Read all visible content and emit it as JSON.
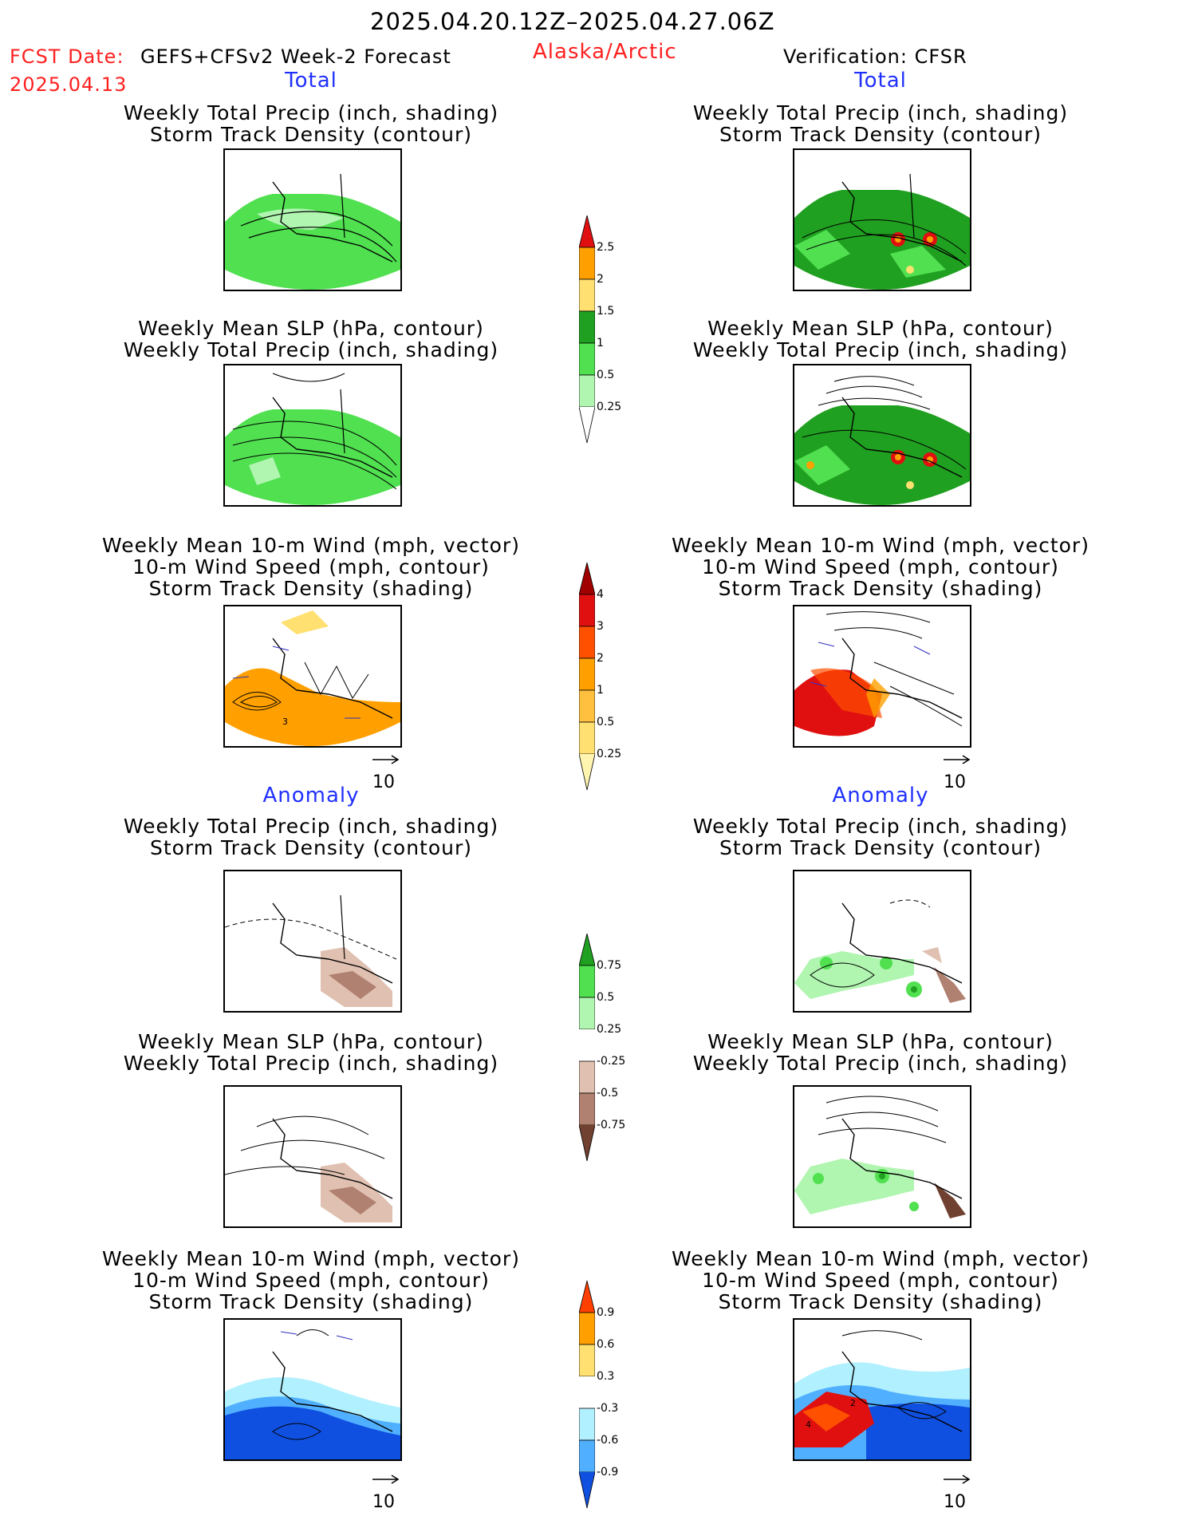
{
  "header": {
    "period": "2025.04.20.12Z–2025.04.27.06Z",
    "fcst_label": "FCST Date:",
    "fcst_model": "GEFS+CFSv2 Week-2 Forecast",
    "fcst_date": "2025.04.13",
    "region": "Alaska/Arctic",
    "verification": "Verification: CFSR"
  },
  "sections": {
    "total_left": "Total",
    "total_right": "Total",
    "anomaly_left": "Anomaly",
    "anomaly_right": "Anomaly"
  },
  "titles": {
    "precip_storm": [
      "Weekly Total Precip (inch, shading)",
      "Storm Track Density (contour)"
    ],
    "slp_precip": [
      "Weekly Mean SLP (hPa, contour)",
      "Weekly Total Precip (inch, shading)"
    ],
    "wind": [
      "Weekly Mean 10-m Wind (mph, vector)",
      "10-m Wind Speed (mph, contour)",
      "Storm Track Density (shading)"
    ]
  },
  "vector_reference": "10",
  "map_labels": {
    "total_wind_left": "3",
    "anom_wind_right_a": "2",
    "anom_wind_right_b": "4"
  },
  "colorbars": {
    "precip_total": {
      "labels": [
        "2.5",
        "2",
        "1.5",
        "1",
        "0.5",
        "0.25"
      ],
      "colors": [
        "#e01010",
        "#ffa000",
        "#ffe070",
        "#20a020",
        "#50e050",
        "#b0f5b0"
      ]
    },
    "storm_total": {
      "labels": [
        "4",
        "3",
        "2",
        "1",
        "0.5",
        "0.25"
      ],
      "colors": [
        "#a00000",
        "#e01010",
        "#ff5000",
        "#ffa000",
        "#ffc040",
        "#ffe070",
        "#fff5b0"
      ]
    },
    "precip_anom": {
      "labels": [
        "0.75",
        "0.5",
        "0.25",
        "-0.25",
        "-0.5",
        "-0.75"
      ],
      "colors": [
        "#20a020",
        "#50e050",
        "#b0f5b0",
        "#ffffff",
        "#e0c0b0",
        "#b08070",
        "#704030"
      ]
    },
    "storm_anom": {
      "labels": [
        "0.9",
        "0.6",
        "0.3",
        "-0.3",
        "-0.6",
        "-0.9"
      ],
      "colors": [
        "#ff4000",
        "#ffa000",
        "#ffe070",
        "#ffffff",
        "#b0f0ff",
        "#50b0ff",
        "#1050e0"
      ]
    }
  }
}
